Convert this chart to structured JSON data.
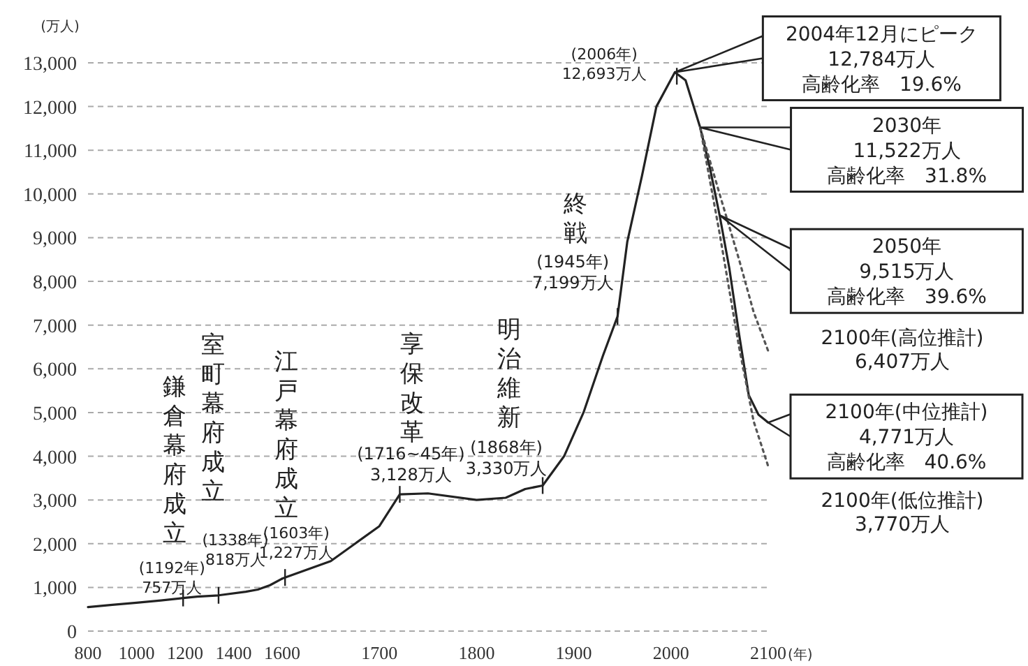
{
  "chart_data": [
    {
      "type": "line",
      "ylabel": "(万人)",
      "x": [
        800,
        900,
        1000,
        1100,
        1192,
        1250,
        1338,
        1450,
        1500,
        1550,
        1600
      ],
      "series": [
        {
          "color": "#222222",
          "line_style": "solid",
          "values": [
            550,
            600,
            650,
            700,
            757,
            790,
            818,
            900,
            950,
            1050,
            1200
          ]
        }
      ],
      "xlim": [
        800,
        1600
      ],
      "ylim": [
        0,
        13000
      ],
      "xticks": [
        800,
        1000,
        1200,
        1400
      ],
      "yticks": [
        0,
        {
          "value": 1000,
          "label": "1,000"
        },
        {
          "value": 2000,
          "label": "2,000"
        },
        {
          "value": 3000,
          "label": "3,000"
        },
        {
          "value": 4000,
          "label": "4,000"
        },
        {
          "value": 5000,
          "label": "5,000"
        },
        {
          "value": 6000,
          "label": "6,000"
        },
        {
          "value": 7000,
          "label": "7,000"
        },
        {
          "value": 8000,
          "label": "8,000"
        },
        {
          "value": 9000,
          "label": "9,000"
        },
        {
          "value": 10000,
          "label": "10,000"
        },
        {
          "value": 11000,
          "label": "11,000"
        },
        {
          "value": 12000,
          "label": "12,000"
        },
        {
          "value": 13000,
          "label": "13,000"
        }
      ],
      "grid": "y",
      "annotations": [
        "鎌倉幕府成立",
        {
          "text": "(1192年)\n757万人",
          "x": 1192,
          "y": 757
        },
        "室町幕府成立",
        {
          "text": "(1338年)\n818万人",
          "x": 1338,
          "y": 818
        }
      ]
    },
    {
      "type": "line",
      "xlabel": "(年)",
      "x": [
        1600,
        1603,
        1650,
        1700,
        1721,
        1750,
        1800,
        1830,
        1850,
        1868,
        1890,
        1910,
        1930,
        1945,
        1955,
        1970,
        1985,
        2004,
        2015,
        2030,
        2040,
        2050,
        2060,
        2070,
        2080,
        2090,
        2100
      ],
      "series": [
        {
          "color": "#222222",
          "line_style": "solid",
          "values": [
            1200,
            1227,
            1600,
            2400,
            3128,
            3150,
            3000,
            3050,
            3250,
            3330,
            4000,
            5000,
            6300,
            7199,
            8900,
            10400,
            12000,
            12784,
            12600,
            11522,
            10600,
            9515,
            8300,
            6800,
            5400,
            4950,
            4771
          ]
        },
        {
          "color": "#555555",
          "line_style": "dotted",
          "x": [
            2030,
            2050,
            2070,
            2085,
            2100
          ],
          "values": [
            11522,
            10000,
            8500,
            7300,
            6407
          ]
        },
        {
          "color": "#555555",
          "line_style": "dotted",
          "x": [
            2030,
            2050,
            2070,
            2085,
            2100
          ],
          "values": [
            11522,
            9100,
            6500,
            4800,
            3770
          ]
        }
      ],
      "xlim": [
        1600,
        2100
      ],
      "ylim": [
        0,
        13000
      ],
      "xticks": [
        1600,
        1700,
        1800,
        1900,
        2000,
        2100
      ],
      "yticks": [
        0,
        1000,
        2000,
        3000,
        4000,
        5000,
        6000,
        7000,
        8000,
        9000,
        10000,
        11000,
        12000,
        13000
      ],
      "grid": "y",
      "tick_labels": "x",
      "annotations": [
        "江戸幕府成立",
        {
          "text": "(1603年)\n1,227万人",
          "x": 1603,
          "y": 1227
        },
        "享保改革",
        {
          "text": "(1716~45年)\n3,128万人",
          "x": 1721,
          "y": 3128
        },
        "明治維新",
        {
          "text": "(1868年)\n3,330万人",
          "x": 1868,
          "y": 3330
        },
        "終戦",
        {
          "text": "(1945年)\n7,199万人",
          "x": 1945,
          "y": 7199
        },
        {
          "text": "(2006年)\n12,693万人",
          "x": 2006,
          "y": 12693
        },
        "2004年12月にピーク\n12,784万人",
        "高齢化率　19.6%",
        "2030年\n11,522万人",
        "高齢化率　31.8%",
        "2050年\n9,515万人",
        "高齢化率　39.6%",
        {
          "text": "2100年(高位推計)\n6,407万人",
          "x": 2100,
          "y": 6407
        },
        {
          "text": "2100年(中位推計)\n4,771万人",
          "x": 2100,
          "y": 4771
        },
        "高齢化率　40.6%",
        {
          "text": "2100年(低位推計)\n3,770万人",
          "x": 2100,
          "y": 3770
        }
      ]
    }
  ]
}
